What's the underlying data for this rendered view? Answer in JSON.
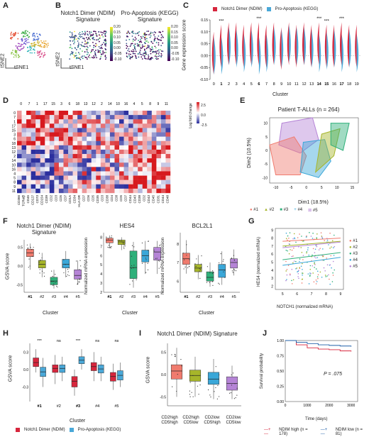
{
  "panels": {
    "A": {
      "label": "A",
      "xlabel": "tSNE1",
      "ylabel": "tSNE2"
    },
    "B": {
      "label": "B",
      "titles": [
        "Notch1 Dimer (NDIM) Signature",
        "Pro-Apoptosis (KEGG) Signature"
      ],
      "xlabel": "tSNE1",
      "ylabel": "tSNE2",
      "colorbar1": [
        "0.20",
        "0.15",
        "0.10",
        "0.05",
        "0.00",
        "-0.05",
        "-0.10"
      ],
      "colorbar2": [
        "0.20",
        "0.15",
        "0.10",
        "0.05",
        "0.00",
        "-0.05",
        "-0.10"
      ]
    },
    "C": {
      "label": "C",
      "legend": [
        "Notch1 Dimer (NDIM)",
        "Pro-Apoptosis (KEGG)"
      ],
      "ylabel": "Gene expression score",
      "xlabel": "Cluster",
      "yticks": [
        "0.15",
        "0.10",
        "0.05",
        "0.00",
        "-0.05",
        "-0.10"
      ],
      "clusters": [
        "0",
        "1",
        "2",
        "3",
        "4",
        "5",
        "6",
        "7",
        "8",
        "9",
        "10",
        "11",
        "12",
        "13",
        "14",
        "15",
        "16",
        "17",
        "18",
        "19"
      ],
      "signif": "***"
    },
    "D": {
      "label": "D",
      "cluster_order": [
        "0",
        "7",
        "1",
        "17",
        "15",
        "3",
        "6",
        "18",
        "13",
        "12",
        "2",
        "14",
        "10",
        "16",
        "4",
        "5",
        "8",
        "9",
        "11"
      ],
      "rows": [
        "0",
        "7",
        "1",
        "17",
        "15",
        "3",
        "6",
        "18",
        "13",
        "12",
        "2",
        "14",
        "10",
        "16",
        "4",
        "5",
        "8",
        "9",
        "11"
      ],
      "markers": [
        "CD366",
        "TCRα/β",
        "CD45",
        "CD127",
        "CD73",
        "CD154",
        "CD39",
        "CD2",
        "CD3",
        "CD5",
        "CD7",
        "CD1A",
        "CD34",
        "HLA-DR",
        "CD7",
        "CD6",
        "CD5",
        "CD35",
        "CD3",
        "CD38",
        "CD4",
        "CD8",
        "CD5",
        "CD7",
        "CD44",
        "CD43",
        "CD38",
        "CD2",
        "CD43",
        "CD45",
        "CD31",
        "CD44",
        "CD48"
      ],
      "colorbar_title": "Log fold change",
      "colorbar": [
        "2.5",
        "0.0",
        "-2.5"
      ]
    },
    "E": {
      "label": "E",
      "title": "Patient T-ALLs (n = 264)",
      "xlabel": "Dim1 (18.5%)",
      "ylabel": "Dim2 (10.5%)",
      "xticks": [
        "-10",
        "-5",
        "0",
        "5",
        "10",
        "15"
      ],
      "yticks": [
        "10",
        "5",
        "0",
        "-5",
        "-10"
      ],
      "legend": [
        "#1",
        "#2",
        "#3",
        "#4",
        "#5"
      ]
    },
    "F": {
      "label": "F",
      "titles": [
        "Notch1 Dimer (NDIM) Signature",
        "HES4",
        "BCL2L1"
      ],
      "ylabels": [
        "GSVA score",
        "Normalized mRNA expression",
        "Normalized mRNA expression"
      ],
      "xlabel": "Cluster",
      "groups": [
        "#1",
        "#2",
        "#3",
        "#4",
        "#5"
      ]
    },
    "G": {
      "label": "G",
      "xlabel": "NOTCH1 (normalized mRNA)",
      "ylabel": "HES4 (normalized mRNA)",
      "xticks": [
        "5",
        "6",
        "7",
        "8",
        "9"
      ],
      "yticks": [
        "9",
        "8",
        "7",
        "6",
        "5",
        "4",
        "3",
        "2"
      ],
      "legend": [
        "#1",
        "#2",
        "#3",
        "#4",
        "#5"
      ]
    },
    "H": {
      "label": "H",
      "ylabel": "GSVA score",
      "xlabel": "Cluster",
      "groups": [
        "#1",
        "#2",
        "#3",
        "#4",
        "#5"
      ],
      "signif": [
        "***",
        "ns",
        "***",
        "ns",
        "ns"
      ],
      "legend": [
        "Notch1 Dimer (NDIM)",
        "Pro-Apoptosis (KEGG)"
      ],
      "yticks": [
        "0.3",
        "0.0",
        "-0.3"
      ]
    },
    "I": {
      "label": "I",
      "title": "Notch1 Dimer (NDIM) Signature",
      "ylabel": "GSVA score",
      "groups": [
        "CD2high CD5high",
        "CD2high CD5low",
        "CD2low CD5high",
        "CD2low CD5low"
      ],
      "yticks": [
        "0.5",
        "0.0",
        "-0.5"
      ]
    },
    "J": {
      "label": "J",
      "ylabel": "Survival probability",
      "xlabel": "Time (days)",
      "pvalue": "P = .075",
      "xticks": [
        "0",
        "1000",
        "2000",
        "3000"
      ],
      "yticks": [
        "1.00",
        "0.75",
        "0.50",
        "0.25",
        "0.00"
      ],
      "legend": [
        "NDIM high (n = 178)",
        "NDIM low (n = 81)"
      ]
    }
  },
  "chart_data": [
    {
      "type": "bar",
      "title": "Panel C",
      "categories": [
        "0",
        "1",
        "2",
        "3",
        "4",
        "5",
        "6",
        "7",
        "8",
        "9",
        "10",
        "11",
        "12",
        "13",
        "14",
        "15",
        "16",
        "17",
        "18",
        "19"
      ],
      "series": [
        {
          "name": "Notch1 Dimer (NDIM)",
          "values": [
            0.0,
            0.03,
            0.04,
            0.04,
            0.03,
            0.04,
            0.04,
            0.03,
            0.04,
            0.02,
            0.04,
            0.03,
            0.04,
            0.03,
            0.04,
            0.03,
            0.03,
            0.04,
            0.03,
            0.03
          ]
        },
        {
          "name": "Pro-Apoptosis (KEGG)",
          "values": [
            -0.01,
            -0.01,
            0.03,
            0.02,
            0.0,
            0.02,
            -0.01,
            0.0,
            0.03,
            0.02,
            0.04,
            0.03,
            0.03,
            0.02,
            0.0,
            0.01,
            0.02,
            0.0,
            0.02,
            0.0
          ]
        }
      ],
      "ylim": [
        -0.1,
        0.15
      ]
    },
    {
      "type": "line",
      "title": "Panel J",
      "x": [
        0,
        500,
        1000,
        1500,
        2000,
        2500,
        3000
      ],
      "series": [
        {
          "name": "NDIM high (n = 178)",
          "values": [
            1.0,
            0.93,
            0.88,
            0.86,
            0.85,
            0.83,
            0.82
          ]
        },
        {
          "name": "NDIM low (n = 81)",
          "values": [
            1.0,
            0.97,
            0.95,
            0.93,
            0.92,
            0.91,
            0.9
          ]
        }
      ],
      "ylim": [
        0,
        1
      ]
    }
  ],
  "colors": {
    "ndim": "#d7263d",
    "kegg": "#4aa8d8",
    "g1": "#f07b6e",
    "g2": "#a6b52a",
    "g3": "#2fb07a",
    "g4": "#3aa7d8",
    "g5": "#b584d6"
  }
}
